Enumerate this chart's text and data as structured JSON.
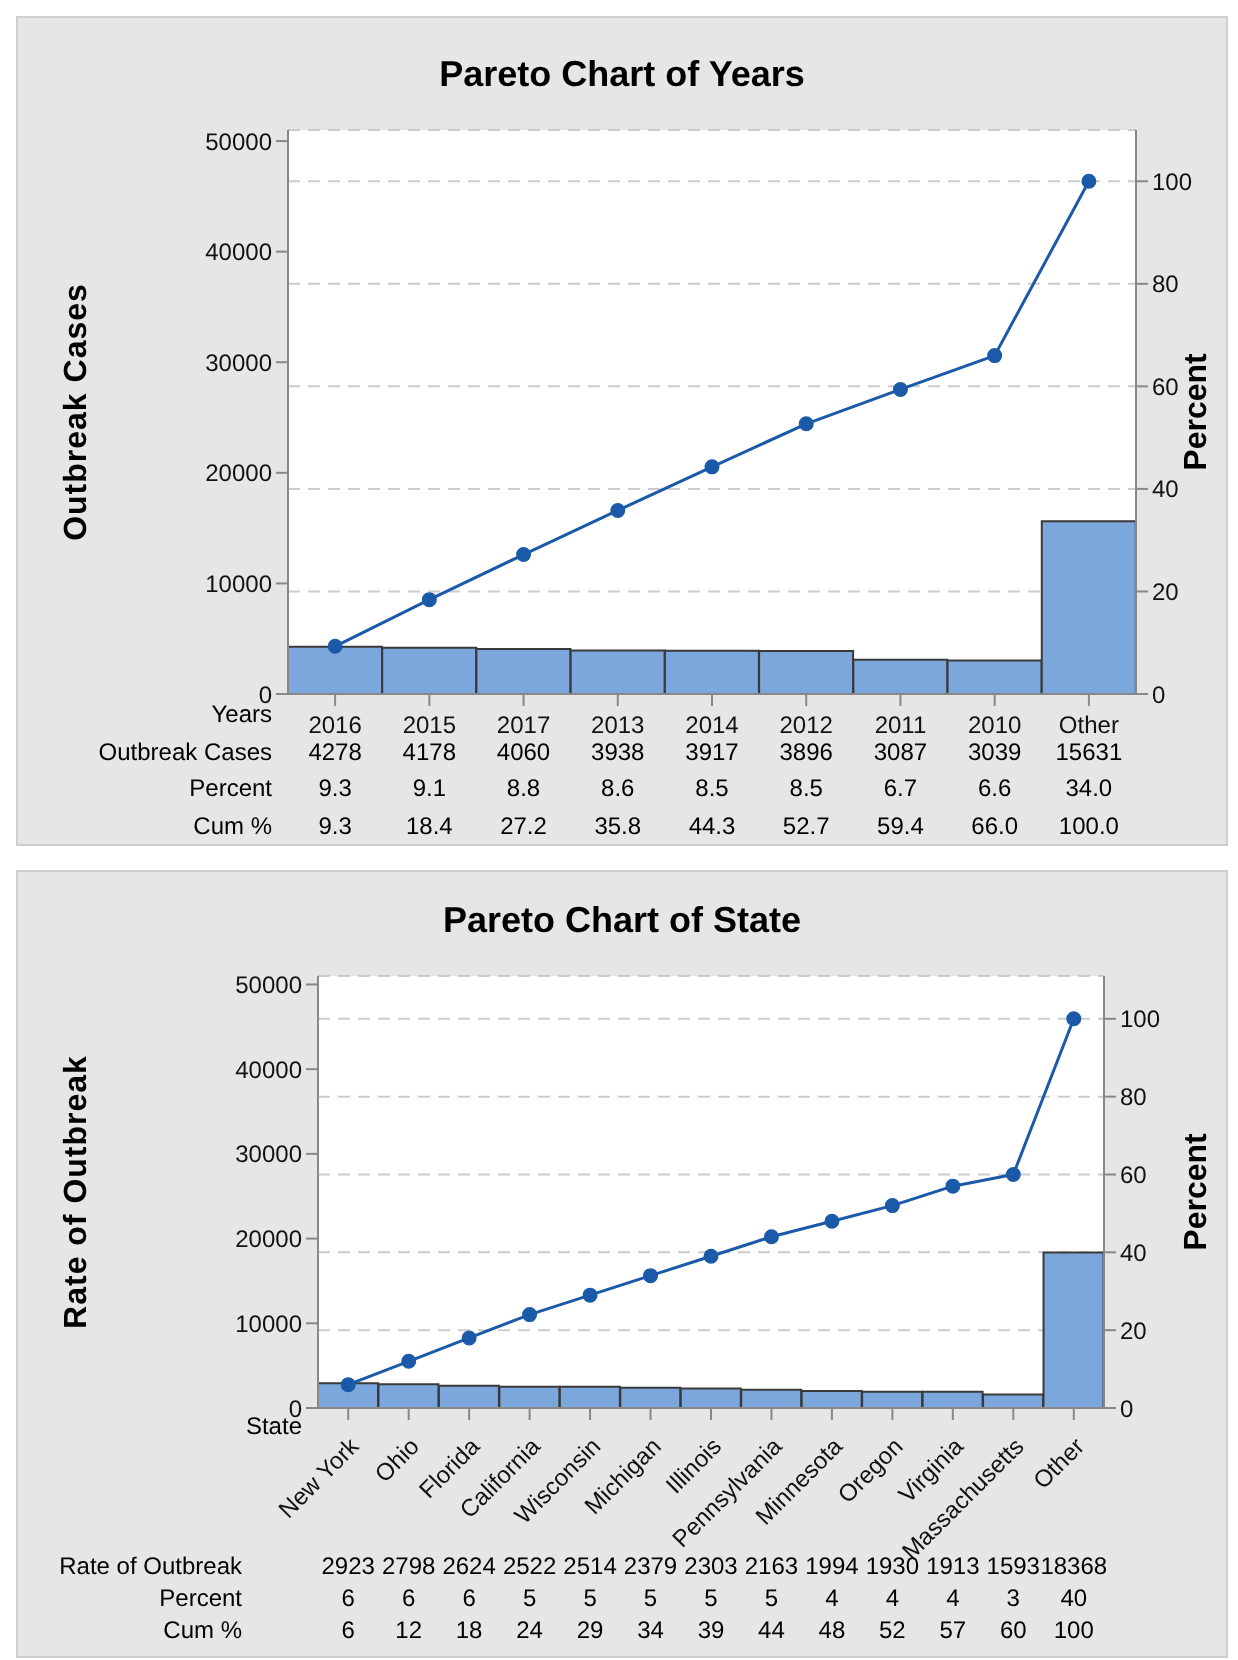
{
  "chart_data": [
    {
      "type": "bar",
      "title": "Pareto Chart of Years",
      "xlabel": "Years",
      "ylabel": "Outbreak Cases",
      "y2label": "Percent",
      "categories": [
        "2016",
        "2015",
        "2017",
        "2013",
        "2014",
        "2012",
        "2011",
        "2010",
        "Other"
      ],
      "series": [
        {
          "color": "#7ba7dc",
          "values": [
            4278,
            4178,
            4060,
            3938,
            3917,
            3896,
            3087,
            3039,
            15631
          ]
        },
        {
          "type": "line",
          "axis": "y2",
          "color": "#1a5aa8",
          "values": [
            9.3,
            18.4,
            27.2,
            35.8,
            44.3,
            52.7,
            59.4,
            66.0,
            100.0
          ],
          "value_labels": [
            "9.3",
            "18.4",
            "27.2",
            "35.8",
            "44.3",
            "52.7",
            "59.4",
            "66.0",
            "100.0"
          ]
        }
      ],
      "annotations": [
        "Outbreak Cases",
        "Percent",
        "Cum %",
        "9.3",
        "9.1",
        "8.8",
        "8.6",
        "8.5",
        "8.5",
        "6.7",
        "6.6",
        "34.0"
      ],
      "ylim": [
        0,
        51000
      ],
      "yticks": [
        0,
        10000,
        20000,
        30000,
        40000,
        50000
      ],
      "y2lim": [
        0,
        110
      ],
      "y2ticks": [
        0,
        20,
        40,
        60,
        80,
        100
      ],
      "grid": "y2",
      "marker": "circle",
      "data_labels": true
    },
    {
      "type": "bar",
      "title": "Pareto Chart of State",
      "xlabel": "State",
      "ylabel": "Rate of Outbreak",
      "y2label": "Percent",
      "categories": [
        "New York",
        "Ohio",
        "Florida",
        "California",
        "Wisconsin",
        "Michigan",
        "Illinois",
        "Pennsylvania",
        "Minnesota",
        "Oregon",
        "Virginia",
        "Massachusetts",
        "Other"
      ],
      "series": [
        {
          "color": "#7ba7dc",
          "values": [
            2923,
            2798,
            2624,
            2522,
            2514,
            2379,
            2303,
            2163,
            1994,
            1930,
            1913,
            1593,
            18368
          ]
        },
        {
          "type": "line",
          "axis": "y2",
          "color": "#1a5aa8",
          "values": [
            6,
            12,
            18,
            24,
            29,
            34,
            39,
            44,
            48,
            52,
            57,
            60,
            100
          ]
        }
      ],
      "annotations": [
        "Rate of Outbreak",
        "Percent",
        "Cum %",
        "6",
        "6",
        "6",
        "5",
        "5",
        "5",
        "5",
        "5",
        "4",
        "4",
        "4",
        "3",
        "40"
      ],
      "ylim": [
        0,
        51000
      ],
      "yticks": [
        0,
        10000,
        20000,
        30000,
        40000,
        50000
      ],
      "y2lim": [
        0,
        111
      ],
      "y2ticks": [
        0,
        20,
        40,
        60,
        80,
        100
      ],
      "grid": "y2",
      "marker": "circle",
      "data_labels": true
    }
  ]
}
